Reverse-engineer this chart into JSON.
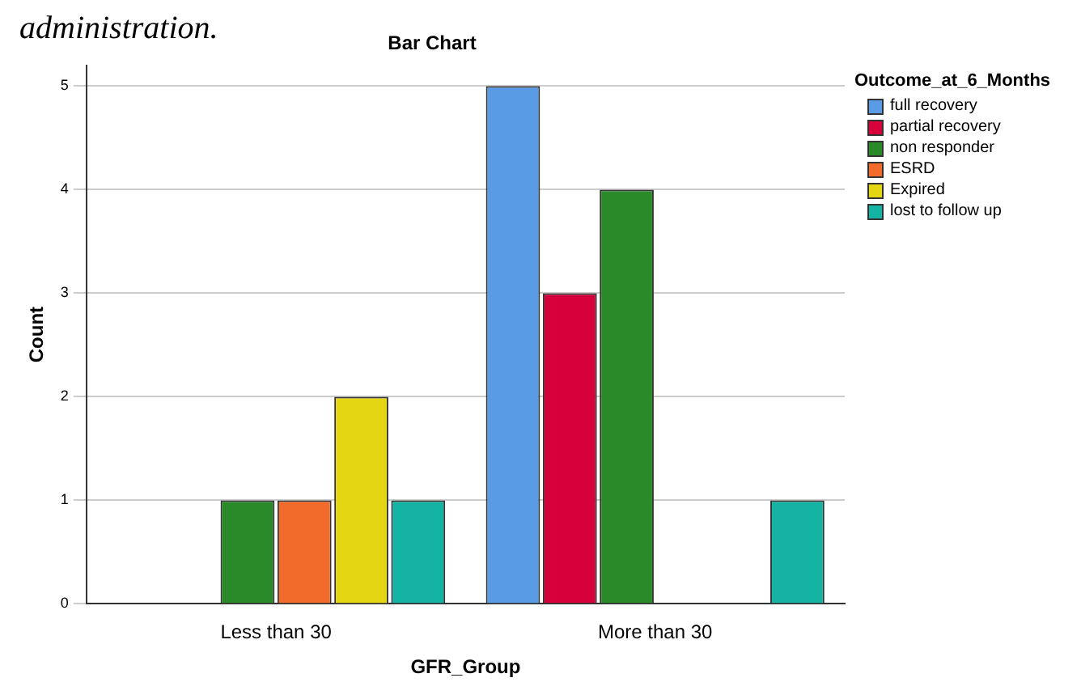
{
  "chart_data": {
    "type": "bar",
    "title": "Bar Chart",
    "xlabel": "GFR_Group",
    "ylabel": "Count",
    "legend_title": "Outcome_at_6_Months",
    "annotations": [
      "administration."
    ],
    "categories": [
      "Less than 30",
      "More than 30"
    ],
    "series": [
      {
        "name": "full recovery",
        "color": "#5a9be6",
        "values": [
          null,
          5
        ]
      },
      {
        "name": "partial recovery",
        "color": "#d6003a",
        "values": [
          null,
          3
        ]
      },
      {
        "name": "non responder",
        "color": "#2a8a2a",
        "values": [
          1,
          4
        ]
      },
      {
        "name": "ESRD",
        "color": "#f26b2a",
        "values": [
          1,
          null
        ]
      },
      {
        "name": "Expired",
        "color": "#e5d614",
        "values": [
          2,
          null
        ]
      },
      {
        "name": "lost to follow up",
        "color": "#14b3a3",
        "values": [
          1,
          1
        ]
      }
    ],
    "ylim": [
      0,
      5.2
    ],
    "yticks": [
      0,
      1,
      2,
      3,
      4,
      5
    ],
    "grid": "y",
    "legend": "top right"
  }
}
